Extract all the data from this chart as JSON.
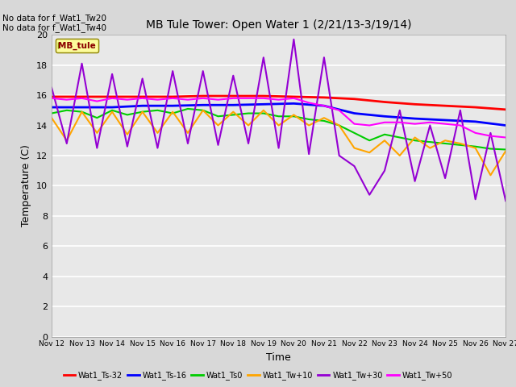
{
  "title": "MB Tule Tower: Open Water 1 (2/21/13-3/19/14)",
  "xlabel": "Time",
  "ylabel": "Temperature (C)",
  "no_data_text": [
    "No data for f_Wat1_Tw20",
    "No data for f_Wat1_Tw40"
  ],
  "legend_box_label": "MB_tule",
  "legend_box_color": "#ffff99",
  "legend_box_border": "#8B8000",
  "legend_box_text_color": "#8B0000",
  "background_color": "#d8d8d8",
  "plot_bg_color": "#e8e8e8",
  "xlim": [
    0,
    15
  ],
  "ylim": [
    0,
    20
  ],
  "yticks": [
    0,
    2,
    4,
    6,
    8,
    10,
    12,
    14,
    16,
    18,
    20
  ],
  "xtick_labels": [
    "Nov 12",
    "Nov 13",
    "Nov 14",
    "Nov 15",
    "Nov 16",
    "Nov 17",
    "Nov 18",
    "Nov 19",
    "Nov 20",
    "Nov 21",
    "Nov 22",
    "Nov 23",
    "Nov 24",
    "Nov 25",
    "Nov 26",
    "Nov 27"
  ],
  "series": {
    "Wat1_Ts-32": {
      "color": "#ff0000",
      "linewidth": 2.0,
      "x": [
        0,
        1,
        2,
        3,
        4,
        5,
        6,
        7,
        8,
        9,
        10,
        11,
        12,
        13,
        14,
        15
      ],
      "y": [
        15.9,
        15.9,
        15.9,
        15.9,
        15.9,
        15.95,
        15.95,
        15.95,
        15.9,
        15.85,
        15.75,
        15.55,
        15.4,
        15.3,
        15.2,
        15.05
      ]
    },
    "Wat1_Ts-16": {
      "color": "#0000ff",
      "linewidth": 2.0,
      "x": [
        0,
        1,
        2,
        3,
        4,
        5,
        6,
        7,
        8,
        9,
        10,
        11,
        12,
        13,
        14,
        15
      ],
      "y": [
        15.2,
        15.2,
        15.2,
        15.3,
        15.3,
        15.35,
        15.35,
        15.4,
        15.45,
        15.3,
        14.8,
        14.6,
        14.45,
        14.35,
        14.25,
        14.0
      ]
    },
    "Wat1_Ts0": {
      "color": "#00cc00",
      "linewidth": 1.5,
      "x": [
        0,
        0.5,
        1,
        1.5,
        2,
        2.5,
        3,
        3.5,
        4,
        4.5,
        5,
        5.5,
        6,
        6.5,
        7,
        7.5,
        8,
        8.5,
        9,
        9.5,
        10,
        10.5,
        11,
        11.5,
        12,
        12.5,
        13,
        13.5,
        14,
        14.5,
        15
      ],
      "y": [
        14.8,
        15.0,
        14.9,
        14.5,
        15.0,
        14.7,
        14.9,
        15.0,
        14.8,
        15.1,
        15.0,
        14.6,
        14.7,
        14.8,
        14.8,
        14.6,
        14.6,
        14.4,
        14.3,
        14.0,
        13.5,
        13.0,
        13.4,
        13.2,
        13.0,
        12.9,
        12.8,
        12.7,
        12.6,
        12.45,
        12.4
      ]
    },
    "Wat1_Tw+10": {
      "color": "#ffa500",
      "linewidth": 1.5,
      "x": [
        0,
        0.5,
        1,
        1.5,
        2,
        2.5,
        3,
        3.5,
        4,
        4.5,
        5,
        5.5,
        6,
        6.5,
        7,
        7.5,
        8,
        8.5,
        9,
        9.5,
        10,
        10.5,
        11,
        11.5,
        12,
        12.5,
        13,
        13.5,
        14,
        14.5,
        15
      ],
      "y": [
        14.5,
        13.0,
        14.9,
        13.5,
        14.9,
        13.4,
        14.9,
        13.5,
        14.9,
        13.5,
        15.0,
        14.0,
        14.9,
        14.0,
        15.0,
        14.0,
        14.7,
        14.0,
        14.5,
        14.0,
        12.5,
        12.2,
        13.0,
        12.0,
        13.2,
        12.5,
        13.0,
        12.8,
        12.5,
        10.7,
        12.3
      ]
    },
    "Wat1_Tw+30": {
      "color": "#9400d3",
      "linewidth": 1.5,
      "x": [
        0,
        0.5,
        1,
        1.5,
        2,
        2.5,
        3,
        3.5,
        4,
        4.5,
        5,
        5.5,
        6,
        6.5,
        7,
        7.5,
        8,
        8.5,
        9,
        9.5,
        10,
        10.5,
        11,
        11.5,
        12,
        12.5,
        13,
        13.5,
        14,
        14.5,
        15
      ],
      "y": [
        16.5,
        12.8,
        18.1,
        12.5,
        17.4,
        12.6,
        17.1,
        12.5,
        17.6,
        12.8,
        17.6,
        12.7,
        17.3,
        12.8,
        18.5,
        12.5,
        19.7,
        12.1,
        18.5,
        12.0,
        11.3,
        9.4,
        11.0,
        15.0,
        10.3,
        14.0,
        10.5,
        15.0,
        9.1,
        13.5,
        9.0
      ]
    },
    "Wat1_Tw+50": {
      "color": "#ff00ff",
      "linewidth": 1.5,
      "x": [
        0,
        0.5,
        1,
        1.5,
        2,
        2.5,
        3,
        3.5,
        4,
        4.5,
        5,
        5.5,
        6,
        6.5,
        7,
        7.5,
        8,
        8.5,
        9,
        9.5,
        10,
        10.5,
        11,
        11.5,
        12,
        12.5,
        13,
        13.5,
        14,
        14.5,
        15
      ],
      "y": [
        15.8,
        15.7,
        15.8,
        15.6,
        15.8,
        15.7,
        15.8,
        15.7,
        15.8,
        15.7,
        15.8,
        15.7,
        15.8,
        15.8,
        15.8,
        15.7,
        15.8,
        15.5,
        15.3,
        15.0,
        14.1,
        14.0,
        14.2,
        14.2,
        14.1,
        14.2,
        14.1,
        14.0,
        13.5,
        13.3,
        13.2
      ]
    }
  }
}
